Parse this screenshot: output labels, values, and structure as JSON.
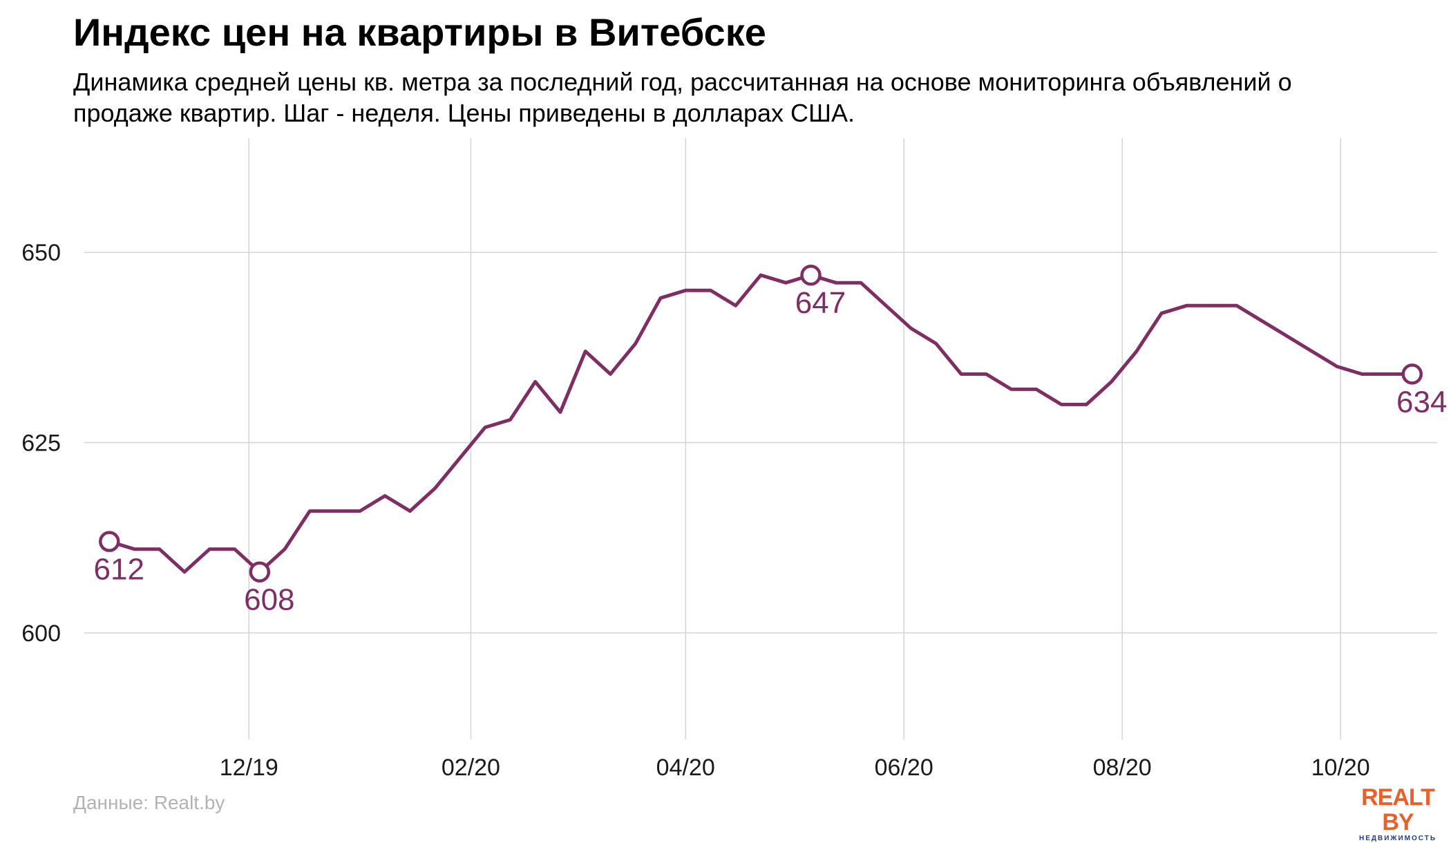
{
  "title": "Индекс цен на квартиры в Витебске",
  "subtitle": "Динамика средней цены кв. метра за последний год, рассчитанная на основе мониторинга объявлений о продаже квартир. Шаг - неделя. Цены приведены в долларах США.",
  "source": "Данные: Realt.by",
  "logo": {
    "main": "REALT BY",
    "sub": "НЕДВИЖИМОСТЬ"
  },
  "colors": {
    "line": "#7e2e63",
    "grid": "#d4d4d4",
    "marker_fill": "#ffffff",
    "logo_orange": "#e8612c",
    "logo_blue": "#1c3e8c"
  },
  "chart_data": {
    "type": "line",
    "title": "Индекс цен на квартиры в Витебске",
    "xlabel": "",
    "ylabel": "",
    "x_start": "2019-10-23",
    "step_days": 7,
    "x_ticks": [
      {
        "label": "12/19",
        "date": "2019-12-01"
      },
      {
        "label": "02/20",
        "date": "2020-02-01"
      },
      {
        "label": "04/20",
        "date": "2020-04-01"
      },
      {
        "label": "06/20",
        "date": "2020-06-01"
      },
      {
        "label": "08/20",
        "date": "2020-08-01"
      },
      {
        "label": "10/20",
        "date": "2020-10-01"
      }
    ],
    "xlim": [
      "2019-10-16",
      "2020-10-28"
    ],
    "y_ticks": [
      600,
      625,
      650
    ],
    "ylim": [
      586,
      665
    ],
    "grid": true,
    "legend": "none",
    "series": [
      {
        "values": [
          612,
          611,
          611,
          608,
          611,
          611,
          608,
          611,
          616,
          616,
          616,
          618,
          616,
          619,
          623,
          627,
          628,
          633,
          629,
          637,
          634,
          638,
          644,
          645,
          645,
          643,
          647,
          646,
          647,
          646,
          646,
          643,
          640,
          638,
          634,
          634,
          632,
          632,
          630,
          630,
          633,
          637,
          642,
          643,
          643,
          643,
          641,
          639,
          637,
          635,
          634,
          634,
          634
        ]
      }
    ],
    "highlights": [
      {
        "index": 0,
        "value": 612,
        "label": "612"
      },
      {
        "index": 6,
        "value": 608,
        "label": "608"
      },
      {
        "index": 28,
        "value": 647,
        "label": "647"
      },
      {
        "index": 52,
        "value": 634,
        "label": "634"
      }
    ]
  }
}
